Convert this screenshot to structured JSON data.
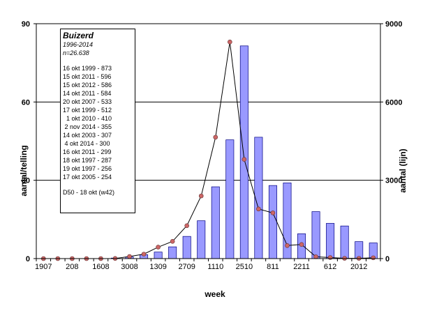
{
  "chart_data": {
    "type": "bar+line",
    "title": "",
    "xlabel": "week",
    "ylabel_left": "aantal/telling",
    "ylabel_right": "aantal (lijn)",
    "ylim_left": [
      0,
      90
    ],
    "ylim_right": [
      0,
      9000
    ],
    "yticks_left": [
      "0",
      "30",
      "60",
      "90"
    ],
    "yticks_right": [
      "0",
      "3000",
      "6000",
      "9000"
    ],
    "grid": true,
    "x_tick_labels": [
      "1907",
      "208",
      "1608",
      "3008",
      "1309",
      "2709",
      "1110",
      "2510",
      "811",
      "2211",
      "612",
      "2012"
    ],
    "colors": {
      "bars": "#9999ff",
      "bar_edge": "#000080",
      "line": "#000000",
      "marker": "#cc6666"
    },
    "series": [
      {
        "type": "bar",
        "axis": "left",
        "values": [
          0,
          0,
          0,
          0,
          0,
          0.2,
          0.6,
          1.5,
          2.5,
          4.5,
          8.5,
          14.5,
          27.5,
          45.5,
          81.5,
          46.5,
          28,
          29,
          9.5,
          18,
          13.5,
          12.5,
          6.5,
          6
        ]
      },
      {
        "type": "line",
        "axis": "right",
        "values": [
          0,
          0,
          0,
          0,
          0,
          5,
          80,
          170,
          440,
          660,
          1260,
          2400,
          4650,
          8300,
          3800,
          1900,
          1750,
          500,
          540,
          70,
          40,
          10,
          10,
          30
        ]
      }
    ]
  },
  "legend": {
    "title": "Buizerd",
    "years": "1996-2014",
    "n": "n=26.638",
    "entries": [
      "16 okt 1999 - 873",
      "15 okt 2011 - 596",
      "15 okt 2012 - 586",
      "14 okt 2011 - 584",
      "20 okt 2007 - 533",
      "17 okt 1999 - 512",
      "  1 okt 2010 - 410",
      " 2 nov 2014 - 355",
      "14 okt 2003 - 307",
      " 4 okt 2014 - 300",
      "16 okt 2011 - 299",
      "18 okt 1997 - 287",
      "19 okt 1997 - 256",
      "17 okt 2005 - 254"
    ],
    "d50": "D50 - 18 okt (w42)"
  }
}
